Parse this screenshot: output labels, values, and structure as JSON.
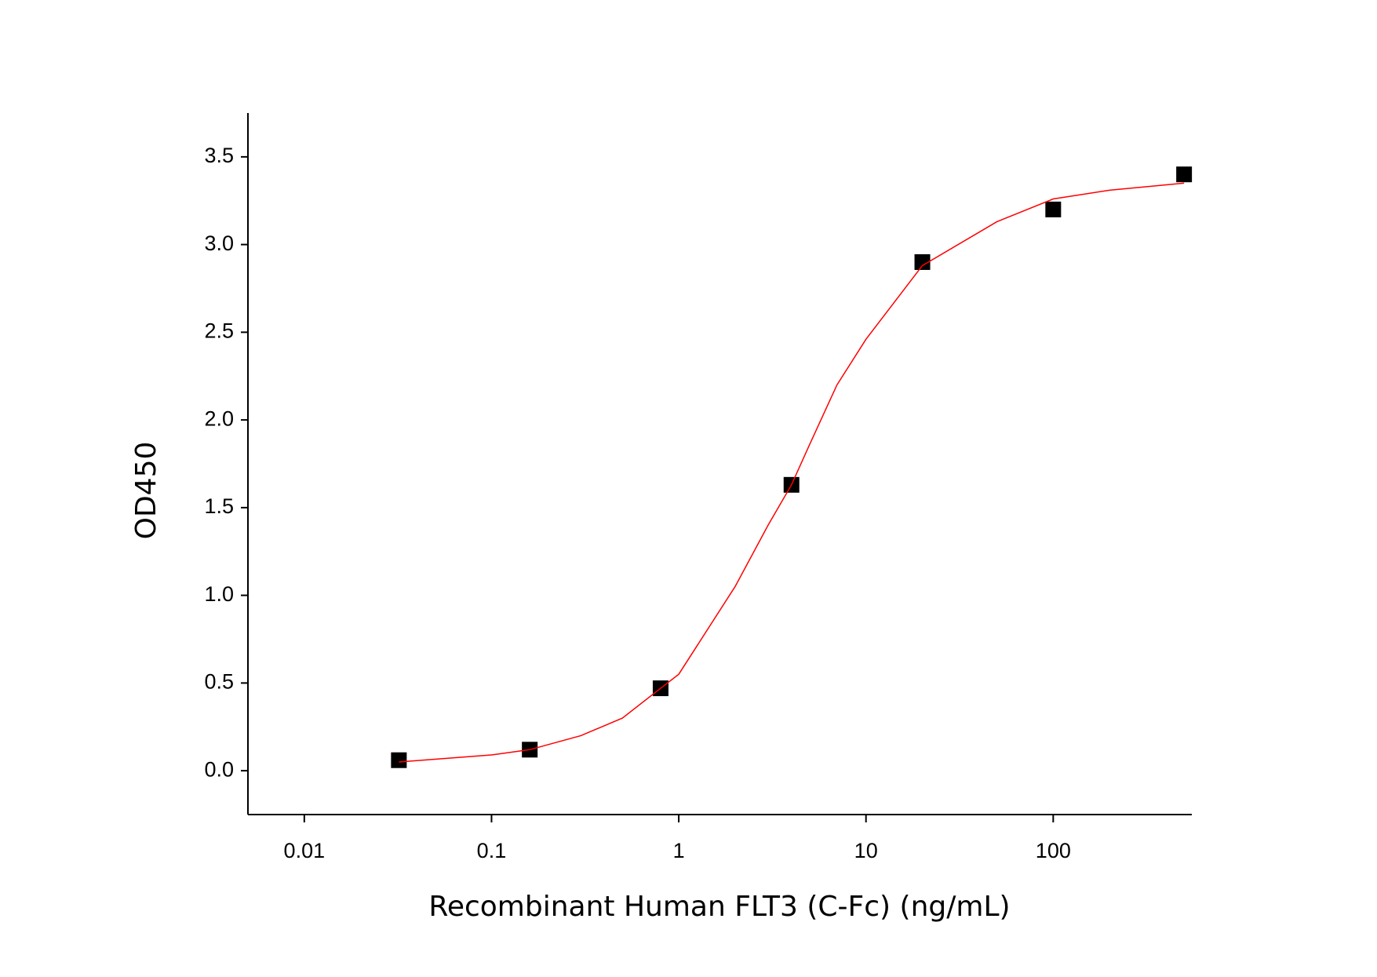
{
  "chart_data": {
    "type": "scatter",
    "x_label": "Recombinant Human FLT3 (C-Fc) (ng/mL)",
    "y_label": "OD450",
    "x_scale": "log",
    "xlim": [
      0.005,
      550
    ],
    "xticks": [
      0.01,
      0.1,
      1,
      10,
      100
    ],
    "ylim": [
      -0.25,
      3.75
    ],
    "yticks": [
      {
        "value": 0,
        "label": "0.0"
      },
      {
        "value": 0.5,
        "label": "0.5"
      },
      {
        "value": 1,
        "label": "1.0"
      },
      {
        "value": 1.5,
        "label": "1.5"
      },
      {
        "value": 2,
        "label": "2.0"
      },
      {
        "value": 2.5,
        "label": "2.5"
      },
      {
        "value": 3,
        "label": "3.0"
      },
      {
        "value": 3.5,
        "label": "3.5"
      }
    ],
    "grid": false,
    "series": [
      {
        "style": "markers",
        "marker": "square",
        "color": "#000000",
        "x": [
          0.032,
          0.16,
          0.8,
          4,
          20,
          100,
          500
        ],
        "values": [
          0.06,
          0.12,
          0.47,
          1.63,
          2.9,
          3.2,
          3.4
        ]
      },
      {
        "style": "line",
        "color": "#ff0000",
        "x": [
          0.032,
          0.1,
          0.16,
          0.3,
          0.5,
          0.8,
          1,
          2,
          3,
          4,
          5,
          7,
          10,
          20,
          50,
          100,
          200,
          500
        ],
        "values": [
          0.05,
          0.09,
          0.12,
          0.2,
          0.3,
          0.47,
          0.55,
          1.05,
          1.4,
          1.63,
          1.86,
          2.2,
          2.46,
          2.88,
          3.13,
          3.26,
          3.31,
          3.35
        ]
      }
    ]
  }
}
